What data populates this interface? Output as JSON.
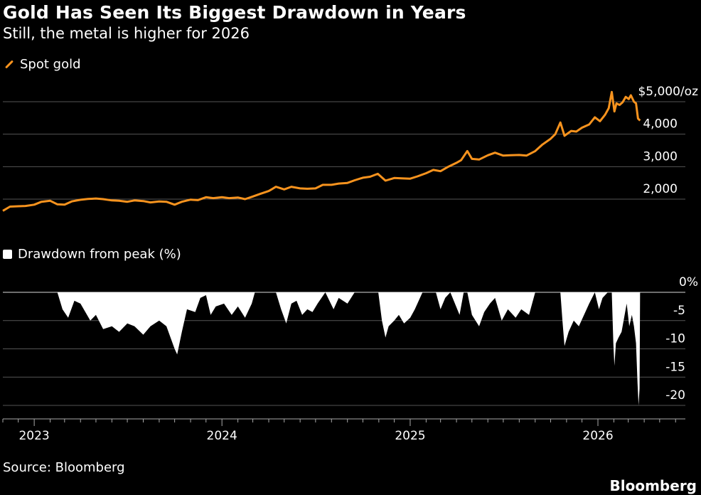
{
  "header": {
    "title": "Gold Has Seen Its Biggest Drawdown in Years",
    "subtitle": "Still, the metal is higher for 2026"
  },
  "footer": {
    "source": "Source: Bloomberg",
    "brand": "Bloomberg"
  },
  "colors": {
    "background": "#000000",
    "gold_line": "#f7931e",
    "drawdown_fill": "#ffffff",
    "grid": "#555555"
  },
  "chart_data": [
    {
      "type": "line",
      "series": [
        {
          "name": "Spot gold",
          "color": "#f7931e"
        }
      ],
      "ylim": [
        1500,
        5200
      ],
      "y_ticks": [
        2000,
        3000,
        4000,
        5000
      ],
      "y_tick_labels": [
        "2,000",
        "3,000",
        "4,000",
        "$5,000/oz"
      ],
      "points": [
        [
          "2022-11-01",
          1640
        ],
        [
          "2022-11-15",
          1770
        ],
        [
          "2022-12-01",
          1780
        ],
        [
          "2022-12-15",
          1790
        ],
        [
          "2023-01-01",
          1830
        ],
        [
          "2023-01-15",
          1920
        ],
        [
          "2023-02-01",
          1950
        ],
        [
          "2023-02-15",
          1840
        ],
        [
          "2023-03-01",
          1830
        ],
        [
          "2023-03-15",
          1930
        ],
        [
          "2023-04-01",
          1980
        ],
        [
          "2023-04-15",
          2005
        ],
        [
          "2023-05-01",
          2020
        ],
        [
          "2023-05-15",
          2000
        ],
        [
          "2023-06-01",
          1960
        ],
        [
          "2023-06-15",
          1950
        ],
        [
          "2023-07-01",
          1920
        ],
        [
          "2023-07-15",
          1960
        ],
        [
          "2023-08-01",
          1940
        ],
        [
          "2023-08-15",
          1900
        ],
        [
          "2023-09-01",
          1930
        ],
        [
          "2023-09-15",
          1920
        ],
        [
          "2023-10-01",
          1830
        ],
        [
          "2023-10-15",
          1920
        ],
        [
          "2023-11-01",
          1985
        ],
        [
          "2023-11-15",
          1970
        ],
        [
          "2023-12-01",
          2060
        ],
        [
          "2023-12-15",
          2030
        ],
        [
          "2024-01-01",
          2060
        ],
        [
          "2024-01-15",
          2030
        ],
        [
          "2024-02-01",
          2050
        ],
        [
          "2024-02-15",
          2000
        ],
        [
          "2024-03-01",
          2080
        ],
        [
          "2024-03-15",
          2160
        ],
        [
          "2024-04-01",
          2250
        ],
        [
          "2024-04-15",
          2380
        ],
        [
          "2024-05-01",
          2300
        ],
        [
          "2024-05-15",
          2380
        ],
        [
          "2024-06-01",
          2330
        ],
        [
          "2024-06-15",
          2320
        ],
        [
          "2024-07-01",
          2330
        ],
        [
          "2024-07-15",
          2440
        ],
        [
          "2024-08-01",
          2440
        ],
        [
          "2024-08-15",
          2480
        ],
        [
          "2024-09-01",
          2500
        ],
        [
          "2024-09-15",
          2580
        ],
        [
          "2024-10-01",
          2660
        ],
        [
          "2024-10-15",
          2690
        ],
        [
          "2024-10-30",
          2780
        ],
        [
          "2024-11-14",
          2570
        ],
        [
          "2024-12-01",
          2650
        ],
        [
          "2024-12-15",
          2640
        ],
        [
          "2025-01-01",
          2630
        ],
        [
          "2025-01-15",
          2700
        ],
        [
          "2025-02-01",
          2800
        ],
        [
          "2025-02-15",
          2900
        ],
        [
          "2025-03-01",
          2860
        ],
        [
          "2025-03-15",
          2990
        ],
        [
          "2025-04-01",
          3120
        ],
        [
          "2025-04-10",
          3200
        ],
        [
          "2025-04-22",
          3480
        ],
        [
          "2025-05-01",
          3240
        ],
        [
          "2025-05-15",
          3220
        ],
        [
          "2025-06-01",
          3350
        ],
        [
          "2025-06-15",
          3430
        ],
        [
          "2025-07-01",
          3340
        ],
        [
          "2025-07-15",
          3350
        ],
        [
          "2025-08-01",
          3360
        ],
        [
          "2025-08-15",
          3340
        ],
        [
          "2025-09-01",
          3480
        ],
        [
          "2025-09-15",
          3680
        ],
        [
          "2025-10-01",
          3860
        ],
        [
          "2025-10-10",
          4000
        ],
        [
          "2025-10-20",
          4360
        ],
        [
          "2025-10-28",
          3950
        ],
        [
          "2025-11-10",
          4100
        ],
        [
          "2025-11-20",
          4080
        ],
        [
          "2025-12-01",
          4200
        ],
        [
          "2025-12-15",
          4300
        ],
        [
          "2025-12-26",
          4520
        ],
        [
          "2026-01-05",
          4400
        ],
        [
          "2026-01-15",
          4600
        ],
        [
          "2026-01-22",
          4800
        ],
        [
          "2026-01-28",
          5300
        ],
        [
          "2026-02-02",
          4700
        ],
        [
          "2026-02-06",
          4950
        ],
        [
          "2026-02-12",
          4900
        ],
        [
          "2026-02-18",
          4980
        ],
        [
          "2026-02-24",
          5150
        ],
        [
          "2026-03-02",
          5080
        ],
        [
          "2026-03-06",
          5200
        ],
        [
          "2026-03-12",
          5000
        ],
        [
          "2026-03-16",
          4950
        ],
        [
          "2026-03-20",
          4480
        ],
        [
          "2026-03-24",
          4420
        ]
      ]
    },
    {
      "type": "area",
      "series": [
        {
          "name": "Drawdown from peak (%)",
          "color": "#ffffff"
        }
      ],
      "ylim": [
        -20,
        0
      ],
      "y_ticks": [
        0,
        -5,
        -10,
        -15,
        -20
      ],
      "y_tick_labels": [
        "0%",
        "-5",
        "-10",
        "-15",
        "-20"
      ],
      "points": [
        [
          "2023-02-15",
          0
        ],
        [
          "2023-02-25",
          -3
        ],
        [
          "2023-03-08",
          -4.5
        ],
        [
          "2023-03-20",
          -1.5
        ],
        [
          "2023-04-01",
          -2
        ],
        [
          "2023-04-20",
          -5
        ],
        [
          "2023-05-01",
          -4
        ],
        [
          "2023-05-15",
          -6.5
        ],
        [
          "2023-06-01",
          -6
        ],
        [
          "2023-06-15",
          -7
        ],
        [
          "2023-07-01",
          -5.5
        ],
        [
          "2023-07-15",
          -6
        ],
        [
          "2023-08-01",
          -7.5
        ],
        [
          "2023-08-15",
          -6
        ],
        [
          "2023-09-01",
          -5
        ],
        [
          "2023-09-15",
          -6
        ],
        [
          "2023-10-01",
          -10
        ],
        [
          "2023-10-06",
          -11
        ],
        [
          "2023-10-15",
          -7
        ],
        [
          "2023-10-25",
          -3
        ],
        [
          "2023-11-10",
          -3.5
        ],
        [
          "2023-11-20",
          -1
        ],
        [
          "2023-12-01",
          -0.5
        ],
        [
          "2023-12-10",
          -4
        ],
        [
          "2023-12-20",
          -2.5
        ],
        [
          "2024-01-05",
          -2
        ],
        [
          "2024-01-20",
          -4
        ],
        [
          "2024-02-01",
          -2.5
        ],
        [
          "2024-02-15",
          -4.5
        ],
        [
          "2024-02-28",
          -2
        ],
        [
          "2024-03-05",
          0
        ],
        [
          "2024-04-15",
          0
        ],
        [
          "2024-04-25",
          -3
        ],
        [
          "2024-05-05",
          -5.5
        ],
        [
          "2024-05-15",
          -2
        ],
        [
          "2024-05-25",
          -1.5
        ],
        [
          "2024-06-05",
          -4
        ],
        [
          "2024-06-15",
          -3
        ],
        [
          "2024-06-25",
          -3.5
        ],
        [
          "2024-07-05",
          -2
        ],
        [
          "2024-07-20",
          0
        ],
        [
          "2024-08-05",
          -3
        ],
        [
          "2024-08-15",
          -1
        ],
        [
          "2024-09-01",
          -2
        ],
        [
          "2024-09-15",
          0
        ],
        [
          "2024-10-31",
          0
        ],
        [
          "2024-11-07",
          -5
        ],
        [
          "2024-11-14",
          -8
        ],
        [
          "2024-11-20",
          -6
        ],
        [
          "2024-12-01",
          -5
        ],
        [
          "2024-12-10",
          -4
        ],
        [
          "2024-12-20",
          -5.5
        ],
        [
          "2025-01-01",
          -4.5
        ],
        [
          "2025-01-10",
          -3
        ],
        [
          "2025-01-25",
          0
        ],
        [
          "2025-02-20",
          0
        ],
        [
          "2025-03-01",
          -3
        ],
        [
          "2025-03-10",
          -1
        ],
        [
          "2025-03-20",
          0
        ],
        [
          "2025-04-07",
          -4
        ],
        [
          "2025-04-15",
          0
        ],
        [
          "2025-04-22",
          0
        ],
        [
          "2025-05-01",
          -4
        ],
        [
          "2025-05-15",
          -6
        ],
        [
          "2025-05-25",
          -3.5
        ],
        [
          "2025-06-05",
          -2
        ],
        [
          "2025-06-15",
          -1
        ],
        [
          "2025-06-28",
          -5
        ],
        [
          "2025-07-10",
          -3
        ],
        [
          "2025-07-25",
          -4.5
        ],
        [
          "2025-08-05",
          -3
        ],
        [
          "2025-08-20",
          -4
        ],
        [
          "2025-09-01",
          0
        ],
        [
          "2025-10-20",
          0
        ],
        [
          "2025-10-24",
          -5
        ],
        [
          "2025-10-28",
          -9.5
        ],
        [
          "2025-11-05",
          -7
        ],
        [
          "2025-11-15",
          -5
        ],
        [
          "2025-11-25",
          -6
        ],
        [
          "2025-12-05",
          -4
        ],
        [
          "2025-12-15",
          -2
        ],
        [
          "2025-12-26",
          0
        ],
        [
          "2026-01-03",
          -3
        ],
        [
          "2026-01-10",
          -1
        ],
        [
          "2026-01-20",
          0
        ],
        [
          "2026-01-28",
          0
        ],
        [
          "2026-01-31",
          -9
        ],
        [
          "2026-02-02",
          -13
        ],
        [
          "2026-02-05",
          -9
        ],
        [
          "2026-02-10",
          -8
        ],
        [
          "2026-02-16",
          -7
        ],
        [
          "2026-02-22",
          -4
        ],
        [
          "2026-02-26",
          -2
        ],
        [
          "2026-03-03",
          -6
        ],
        [
          "2026-03-08",
          -4
        ],
        [
          "2026-03-12",
          -6
        ],
        [
          "2026-03-16",
          -9
        ],
        [
          "2026-03-19",
          -16
        ],
        [
          "2026-03-21",
          -20
        ],
        [
          "2026-03-23",
          -17
        ],
        [
          "2026-03-24",
          0
        ]
      ]
    }
  ],
  "x_axis": {
    "range": [
      "2022-11-01",
      "2026-06-20"
    ],
    "ticks": [
      {
        "date": "2023-01-01",
        "label": "2023"
      },
      {
        "date": "2024-01-01",
        "label": "2024"
      },
      {
        "date": "2025-01-01",
        "label": "2025"
      },
      {
        "date": "2026-01-01",
        "label": "2026"
      }
    ]
  }
}
